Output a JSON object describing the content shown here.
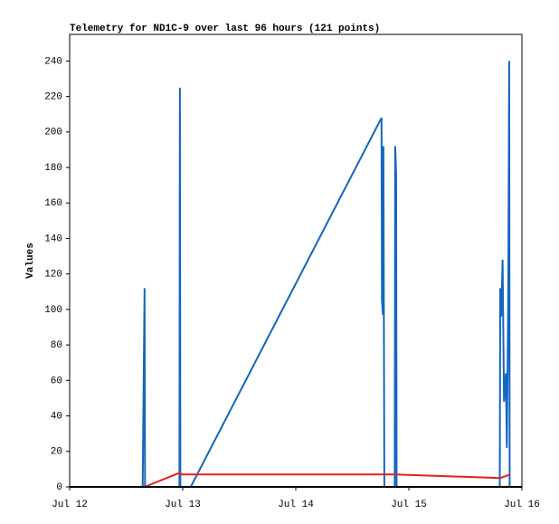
{
  "chart_data": {
    "type": "line",
    "title": "Telemetry for ND1C-9 over last 96 hours (121 points)",
    "y_label": "Values",
    "xlim": [
      0,
      96
    ],
    "xticks": [
      {
        "value": 0,
        "label": "Jul 12"
      },
      {
        "value": 24,
        "label": "Jul 13"
      },
      {
        "value": 48,
        "label": "Jul 14"
      },
      {
        "value": 72,
        "label": "Jul 15"
      },
      {
        "value": 96,
        "label": "Jul 16"
      }
    ],
    "ylim": [
      0,
      255
    ],
    "yticks": [
      0,
      20,
      40,
      60,
      80,
      100,
      120,
      140,
      160,
      180,
      200,
      220,
      240
    ],
    "grid": false,
    "series": [
      {
        "color": "#1565c0",
        "x": [
          15.5,
          15.9,
          16.0,
          23.3,
          23.4,
          23.5,
          25.7,
          66.2,
          66.3,
          66.5,
          66.6,
          66.8,
          69.0,
          69.1,
          69.3,
          69.4,
          91.3,
          91.4,
          91.6,
          91.9,
          92.2,
          92.6,
          92.8,
          93.1,
          93.3,
          93.4
        ],
        "values": [
          0,
          112,
          0,
          0,
          225,
          0,
          0,
          208,
          105,
          97,
          192,
          0,
          0,
          192,
          177,
          0,
          0,
          112,
          96,
          128,
          48,
          64,
          22,
          106,
          240,
          0
        ]
      },
      {
        "color": "#e5201e",
        "x": [
          15.9,
          23.4,
          23.8,
          69.0,
          91.4,
          93.5
        ],
        "values": [
          0,
          8,
          7,
          7,
          5,
          7
        ]
      },
      {
        "color": "#000000",
        "x": [
          0,
          96
        ],
        "values": [
          0,
          0
        ]
      }
    ]
  }
}
